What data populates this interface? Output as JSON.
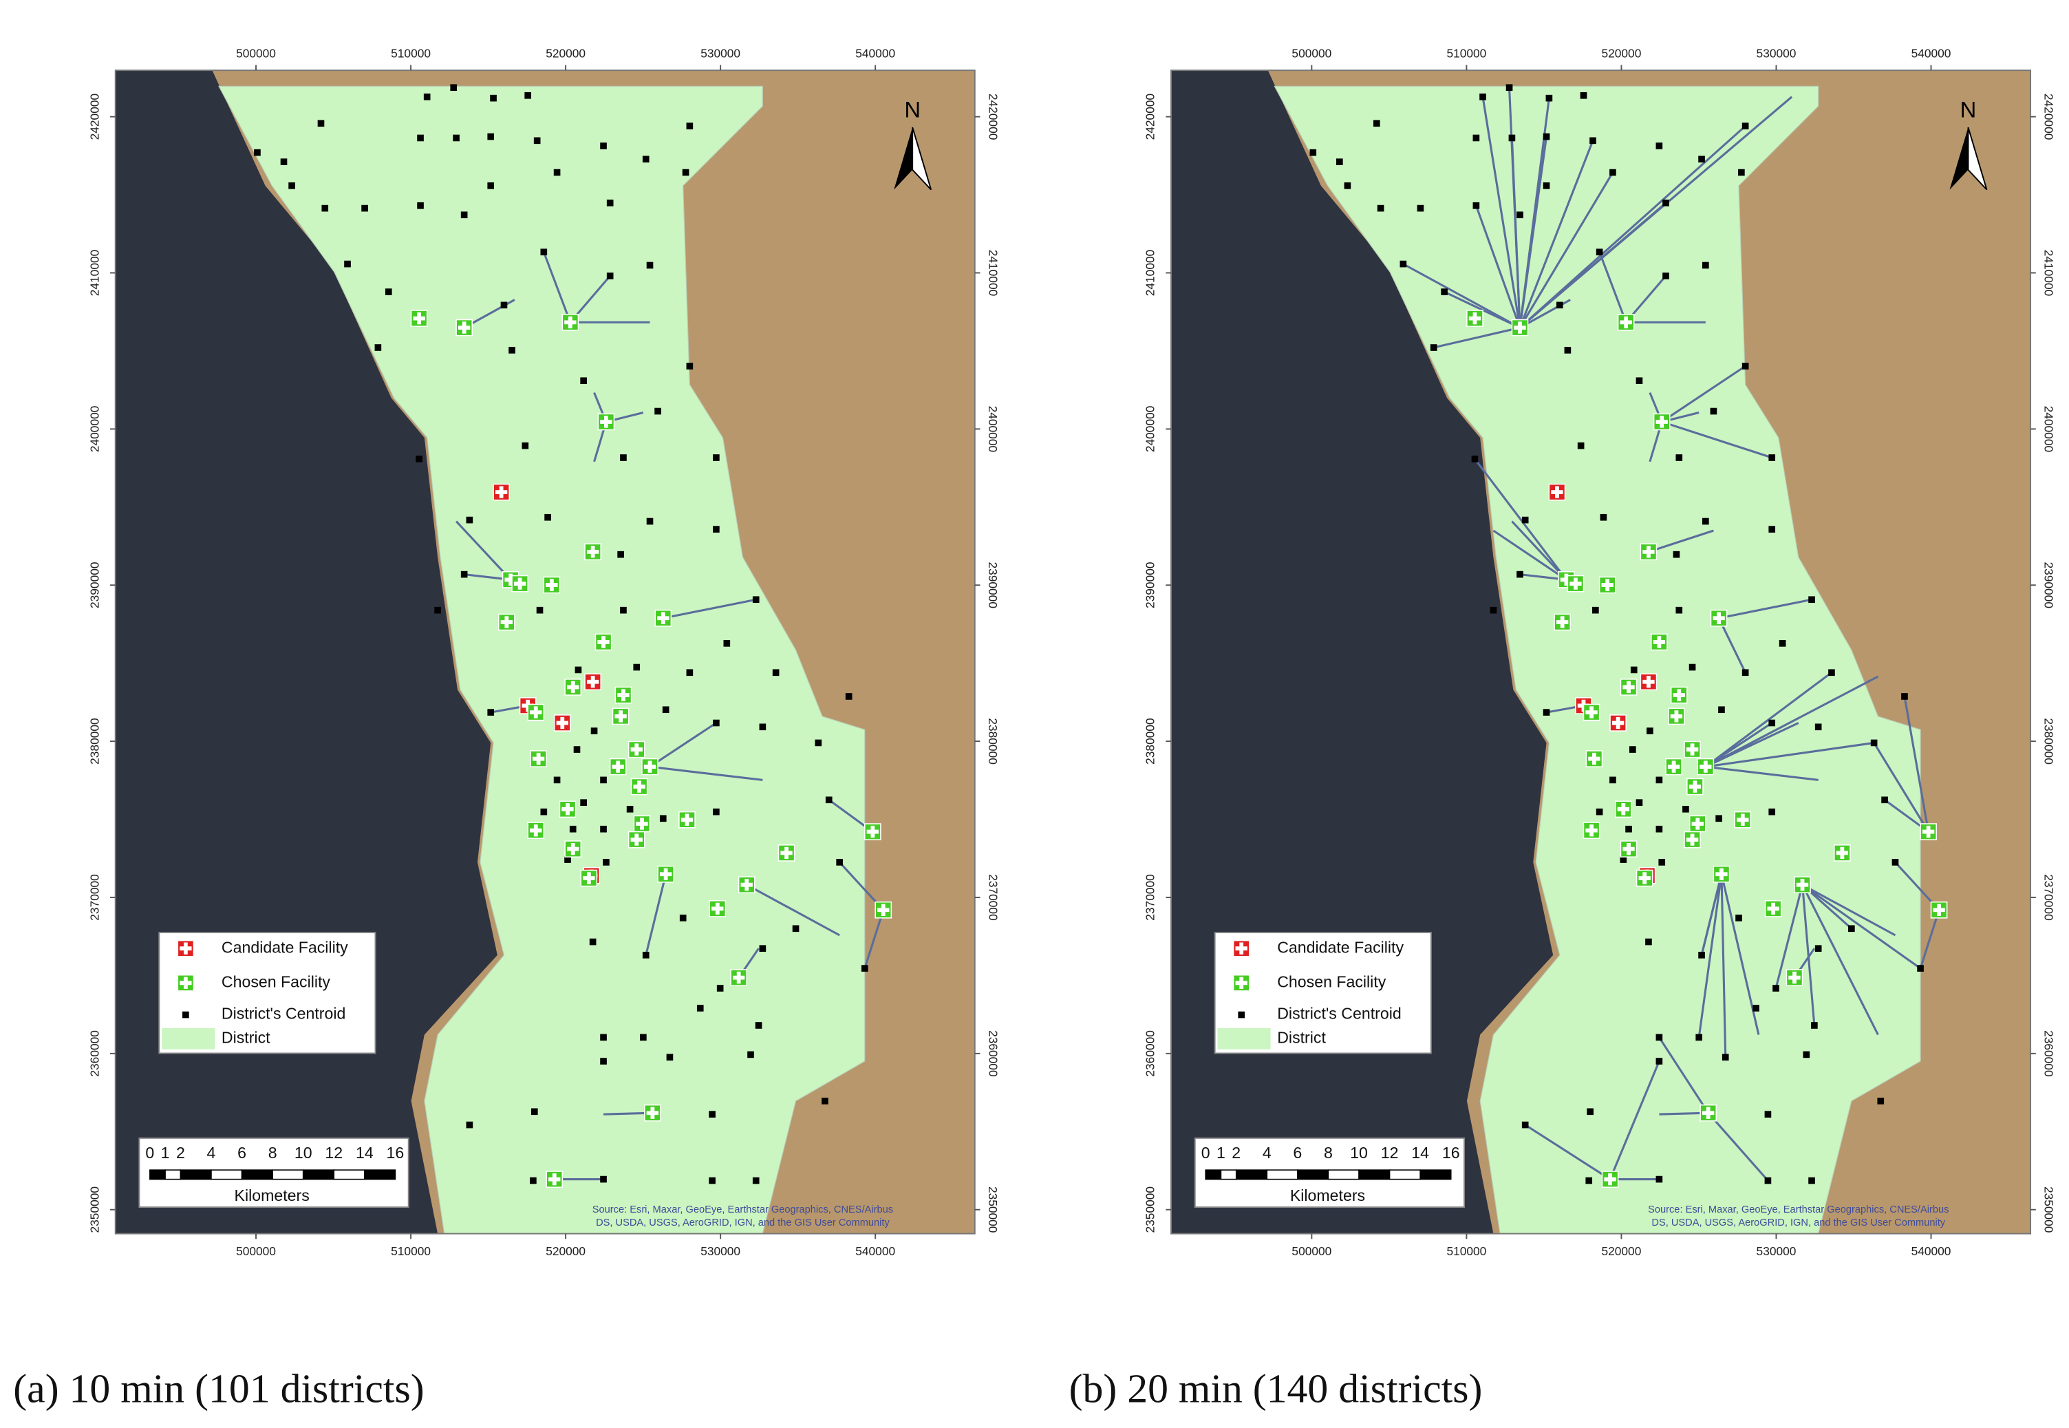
{
  "x_ticks": [
    500000,
    510000,
    520000,
    530000,
    540000
  ],
  "y_ticks": [
    2350000,
    2360000,
    2370000,
    2380000,
    2390000,
    2400000,
    2410000,
    2420000
  ],
  "north": "N",
  "legend": [
    "Candidate Facility",
    "Chosen Facility",
    "District's Centroid",
    "District"
  ],
  "scale_bar": {
    "ticks": [
      0,
      1,
      2,
      4,
      6,
      8,
      10,
      12,
      14,
      16
    ],
    "unit": "Kilometers"
  },
  "source": [
    "Source: Esri, Maxar, GeoEye, Earthstar Geographics, CNES/Airbus",
    "DS, USDA, USGS, AeroGRID, IGN, and the GIS User Community"
  ],
  "panels": [
    {
      "caption": "(a) 10 min (101 districts)"
    },
    {
      "caption": "(b) 20 min (140 districts)"
    }
  ]
}
